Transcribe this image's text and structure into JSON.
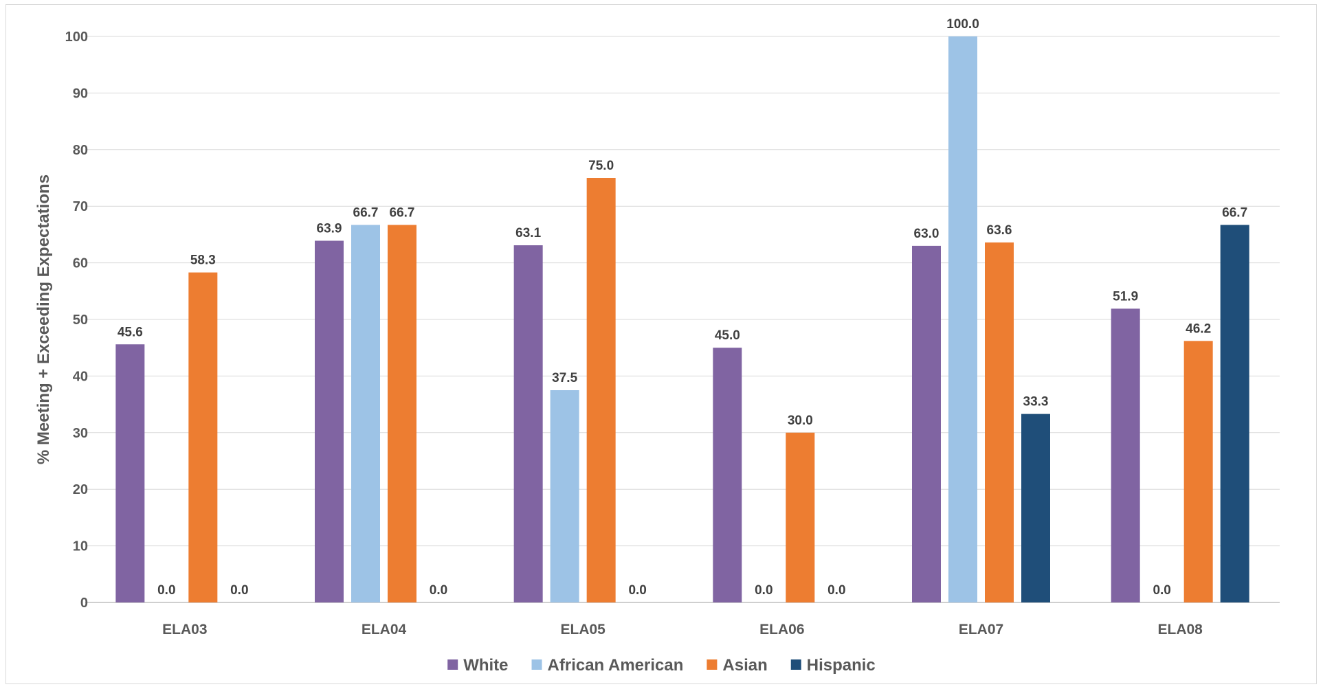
{
  "chart_data": {
    "type": "bar",
    "title": "",
    "xlabel": "",
    "ylabel": "% Meeting + Exceeding Expectations",
    "ylim": [
      0,
      100
    ],
    "yticks": [
      0,
      10,
      20,
      30,
      40,
      50,
      60,
      70,
      80,
      90,
      100
    ],
    "grid": true,
    "legend_position": "bottom",
    "categories": [
      "ELA03",
      "ELA04",
      "ELA05",
      "ELA06",
      "ELA07",
      "ELA08"
    ],
    "series": [
      {
        "name": "White",
        "color": "#8064a2",
        "values": [
          45.6,
          63.9,
          63.1,
          45.0,
          63.0,
          51.9
        ],
        "labels": [
          "45.6",
          "63.9",
          "63.1",
          "45.0",
          "63.0",
          "51.9"
        ]
      },
      {
        "name": "African American",
        "color": "#9dc3e6",
        "values": [
          0.0,
          66.7,
          37.5,
          0.0,
          100.0,
          0.0
        ],
        "labels": [
          "0.0",
          "66.7",
          "37.5",
          "0.0",
          "100.0",
          "0.0"
        ]
      },
      {
        "name": "Asian",
        "color": "#ed7d31",
        "values": [
          58.3,
          66.7,
          75.0,
          30.0,
          63.6,
          46.2
        ],
        "labels": [
          "58.3",
          "66.7",
          "75.0",
          "30.0",
          "63.6",
          "46.2"
        ]
      },
      {
        "name": "Hispanic",
        "color": "#1f4e79",
        "values": [
          0.0,
          0.0,
          0.0,
          0.0,
          33.3,
          66.7
        ],
        "labels": [
          "0.0",
          "0.0",
          "0.0",
          "0.0",
          "33.3",
          "66.7"
        ]
      }
    ]
  }
}
